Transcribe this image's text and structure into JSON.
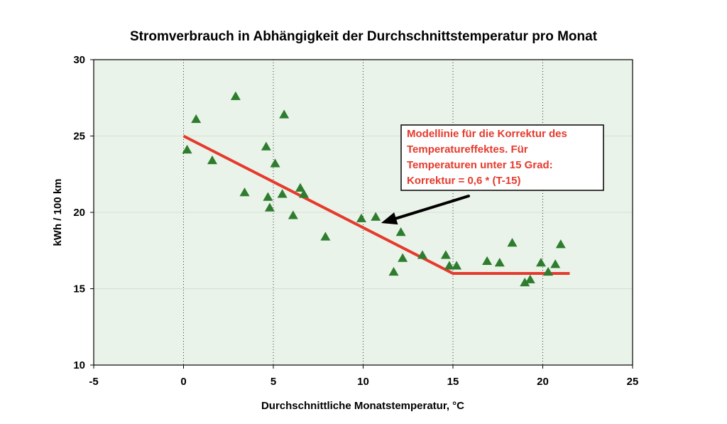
{
  "chart_data": {
    "type": "scatter",
    "title": "Stromverbrauch in Abhängigkeit der Durchschnittstemperatur pro Monat",
    "xlabel": "Durchschnittliche Monatstemperatur, °C",
    "ylabel": "kWh / 100 km",
    "xlim": [
      -5,
      25
    ],
    "ylim": [
      10,
      30
    ],
    "x_ticks": [
      "-5",
      "0",
      "5",
      "10",
      "15",
      "20",
      "25"
    ],
    "y_ticks": [
      "10",
      "15",
      "20",
      "25",
      "30"
    ],
    "grid": {
      "x": true,
      "y": true
    },
    "series": [
      {
        "marker": "triangle",
        "color": "#2e7d2e",
        "x": [
          0.2,
          0.7,
          1.6,
          2.9,
          3.4,
          4.6,
          4.7,
          4.8,
          5.1,
          5.5,
          5.6,
          6.1,
          6.5,
          6.7,
          7.9,
          9.9,
          10.7,
          11.7,
          12.1,
          12.2,
          13.3,
          14.6,
          14.8,
          15.2,
          16.9,
          17.6,
          18.3,
          19.0,
          19.3,
          19.9,
          20.3,
          20.7,
          21.0
        ],
        "y": [
          24.1,
          26.1,
          23.4,
          27.6,
          21.3,
          24.3,
          21.0,
          20.3,
          23.2,
          21.2,
          26.4,
          19.8,
          21.6,
          21.2,
          18.4,
          19.6,
          19.7,
          16.1,
          18.7,
          17.0,
          17.2,
          17.2,
          16.5,
          16.5,
          16.8,
          16.7,
          18.0,
          15.4,
          15.6,
          16.7,
          16.1,
          16.6,
          17.9
        ]
      },
      {
        "type": "line",
        "color": "#e53a2c",
        "x": [
          0,
          15,
          21.5
        ],
        "y": [
          25,
          16,
          16
        ]
      }
    ],
    "annotation": {
      "lines": [
        "Modellinie für die Korrektur des",
        "Temperatureffektes. Für",
        "Temperaturen unter 15 Grad:",
        "Korrektur = 0,6 * (T-15)"
      ],
      "arrow_target": [
        11,
        19.3
      ]
    },
    "colors": {
      "plot_background": "#eaf3e9",
      "marker": "#2e7d2e",
      "model_line": "#e53a2c",
      "annotation_text": "#e53a2c",
      "grid": "#d4dfd3"
    }
  }
}
